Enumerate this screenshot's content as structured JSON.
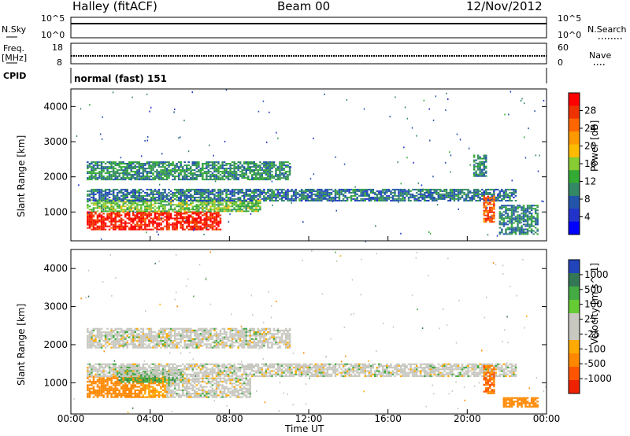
{
  "header": {
    "station": "Halley (fitACF)",
    "beam": "Beam 00",
    "date": "12/Nov/2012"
  },
  "left_labels": {
    "nsky": "N.Sky",
    "freq": "Freq.",
    "freq_unit": "[MHz]",
    "cpid": "CPID"
  },
  "right_labels": {
    "nsearch": "N.Search",
    "nave": "Nave"
  },
  "noise_axis": {
    "left_top": "10^5",
    "left_bottom": "10^0",
    "right_top": "10^5",
    "right_bottom": "10^0"
  },
  "freq_axis": {
    "left_top": "18",
    "left_bottom": "8",
    "right_top": "60",
    "right_bottom": "0"
  },
  "cpid_text": "normal (fast) 151",
  "chart_data": [
    {
      "type": "heatmap",
      "parameter": "Power",
      "ylabel": "Slant Range [km]",
      "colorbar_label": "Power [dB]",
      "colorbar_ticks": [
        "28",
        "24",
        "20",
        "16",
        "12",
        "8",
        "4"
      ],
      "colorbar_colors": [
        "#ff0000",
        "#ee3300",
        "#ff6600",
        "#ff9900",
        "#ffbb00",
        "#88cc33",
        "#33aa33",
        "#338866",
        "#2255aa",
        "#2233cc",
        "#0000ff"
      ],
      "yticks": [
        "4000",
        "3000",
        "2000",
        "1000"
      ],
      "ylim": [
        180,
        4500
      ],
      "xlim": [
        0,
        24
      ],
      "grid": false,
      "echo_bands": [
        {
          "t0": 0.8,
          "t1": 7.5,
          "r0": 480,
          "r1": 1000,
          "value": 27
        },
        {
          "t0": 0.8,
          "t1": 9.5,
          "r0": 1000,
          "r1": 1350,
          "value": 12
        },
        {
          "t0": 0.8,
          "t1": 22.5,
          "r0": 1300,
          "r1": 1650,
          "value": 6
        },
        {
          "t0": 0.8,
          "t1": 11.0,
          "r0": 1900,
          "r1": 2400,
          "value": 8
        },
        {
          "t0": 20.3,
          "t1": 21.0,
          "r0": 2000,
          "r1": 2600,
          "value": 8
        },
        {
          "t0": 20.8,
          "t1": 21.4,
          "r0": 700,
          "r1": 1450,
          "value": 24
        },
        {
          "t0": 21.6,
          "t1": 23.6,
          "r0": 350,
          "r1": 1200,
          "value": 7
        }
      ]
    },
    {
      "type": "heatmap",
      "parameter": "Velocity",
      "ylabel": "Slant Range [km]",
      "colorbar_label": "Velocity [m s^-1]",
      "colorbar_ticks": [
        "1000",
        "500",
        "100",
        "25",
        "-25",
        "-100",
        "-500",
        "-1000"
      ],
      "colorbar_colors": [
        "#2244bb",
        "#337755",
        "#44aa44",
        "#66cc33",
        "#c8c8c0",
        "#c8c8c0",
        "#ffaa00",
        "#ff8800",
        "#ff5500",
        "#ee2200"
      ],
      "yticks": [
        "4000",
        "3000",
        "2000",
        "1000"
      ],
      "ylim": [
        180,
        4500
      ],
      "xlim": [
        0,
        24
      ],
      "grid": false,
      "echo_bands": [
        {
          "t0": 0.8,
          "t1": 3.6,
          "r0": 600,
          "r1": 1150,
          "value": -150
        },
        {
          "t0": 3.6,
          "t1": 4.8,
          "r0": 600,
          "r1": 1100,
          "value": -100
        },
        {
          "t0": 2.4,
          "t1": 5.6,
          "r0": 1000,
          "r1": 1350,
          "value": 80
        },
        {
          "t0": 4.8,
          "t1": 9.0,
          "r0": 600,
          "r1": 1100,
          "value": 0
        },
        {
          "t0": 0.8,
          "t1": 22.5,
          "r0": 1150,
          "r1": 1500,
          "value": 0
        },
        {
          "t0": 0.8,
          "t1": 11.0,
          "r0": 1900,
          "r1": 2400,
          "value": 0
        },
        {
          "t0": 20.8,
          "t1": 21.4,
          "r0": 700,
          "r1": 1450,
          "value": -500
        },
        {
          "t0": 21.8,
          "t1": 23.6,
          "r0": 350,
          "r1": 600,
          "value": -200
        }
      ]
    }
  ],
  "time_axis": {
    "ticks": [
      "00:00",
      "04:00",
      "08:00",
      "12:00",
      "16:00",
      "20:00",
      "00:00"
    ],
    "label": "Time UT"
  }
}
